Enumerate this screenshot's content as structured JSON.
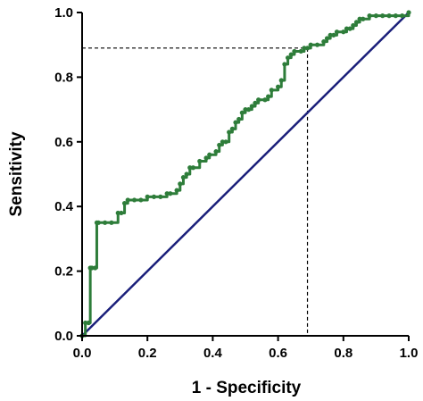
{
  "chart_data": {
    "type": "line",
    "xlabel": "1 - Specificity",
    "ylabel": "Sensitivity",
    "xlim": [
      0,
      1.0
    ],
    "ylim": [
      0,
      1.0
    ],
    "x_ticks": [
      "0.0",
      "0.2",
      "0.4",
      "0.6",
      "0.8",
      "1.0"
    ],
    "y_ticks": [
      "0.0",
      "0.2",
      "0.4",
      "0.6",
      "0.8",
      "1.0"
    ],
    "grid": false,
    "colors": {
      "roc": "#2e7d3a",
      "reference": "#1a1f7a",
      "cutoff": "#000000"
    },
    "series": [
      {
        "style": "step-line-with-markers",
        "x": [
          0.0,
          0.01,
          0.02,
          0.025,
          0.03,
          0.04,
          0.045,
          0.05,
          0.07,
          0.09,
          0.11,
          0.12,
          0.13,
          0.14,
          0.16,
          0.18,
          0.2,
          0.22,
          0.24,
          0.26,
          0.27,
          0.29,
          0.3,
          0.31,
          0.32,
          0.33,
          0.34,
          0.36,
          0.38,
          0.39,
          0.41,
          0.42,
          0.43,
          0.44,
          0.45,
          0.46,
          0.47,
          0.48,
          0.49,
          0.5,
          0.51,
          0.52,
          0.53,
          0.54,
          0.56,
          0.57,
          0.58,
          0.6,
          0.61,
          0.62,
          0.63,
          0.64,
          0.65,
          0.67,
          0.68,
          0.69,
          0.7,
          0.72,
          0.74,
          0.75,
          0.76,
          0.77,
          0.78,
          0.8,
          0.81,
          0.82,
          0.83,
          0.84,
          0.85,
          0.86,
          0.88,
          0.9,
          0.92,
          0.94,
          0.96,
          0.98,
          1.0
        ],
        "y": [
          0.0,
          0.04,
          0.04,
          0.21,
          0.21,
          0.21,
          0.35,
          0.35,
          0.35,
          0.35,
          0.38,
          0.38,
          0.41,
          0.42,
          0.42,
          0.42,
          0.43,
          0.43,
          0.43,
          0.44,
          0.44,
          0.45,
          0.47,
          0.49,
          0.5,
          0.52,
          0.52,
          0.54,
          0.55,
          0.56,
          0.57,
          0.59,
          0.6,
          0.6,
          0.63,
          0.64,
          0.66,
          0.67,
          0.69,
          0.7,
          0.7,
          0.71,
          0.72,
          0.73,
          0.73,
          0.74,
          0.76,
          0.77,
          0.79,
          0.84,
          0.86,
          0.87,
          0.88,
          0.88,
          0.89,
          0.89,
          0.9,
          0.9,
          0.91,
          0.92,
          0.93,
          0.93,
          0.94,
          0.94,
          0.95,
          0.95,
          0.96,
          0.97,
          0.98,
          0.98,
          0.99,
          0.99,
          0.99,
          0.99,
          0.99,
          0.99,
          1.0
        ]
      },
      {
        "style": "line",
        "x": [
          0,
          1
        ],
        "y": [
          0,
          1
        ]
      }
    ],
    "cutoff_point": {
      "x": 0.69,
      "y": 0.89
    }
  }
}
